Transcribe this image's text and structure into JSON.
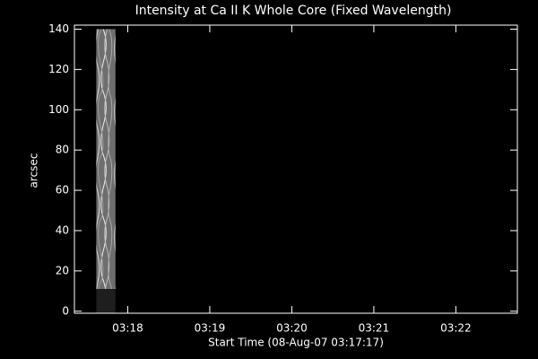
{
  "chart_data": {
    "type": "heatmap",
    "title": "Intensity at Ca II K Whole Core (Fixed Wavelength)",
    "xlabel": "Start Time (08-Aug-07 03:17:17)",
    "ylabel": "arcsec",
    "xlim": [
      11841,
      12165
    ],
    "ylim": [
      -1,
      142
    ],
    "xticks": [
      {
        "value": 11880,
        "label": "03:18"
      },
      {
        "value": 11940,
        "label": "03:19"
      },
      {
        "value": 12000,
        "label": "03:20"
      },
      {
        "value": 12060,
        "label": "03:21"
      },
      {
        "value": 12120,
        "label": "03:22"
      }
    ],
    "yticks": [
      0,
      20,
      40,
      60,
      80,
      100,
      120,
      140
    ],
    "image": {
      "xlim": [
        11857,
        11871
      ],
      "ylim": [
        -1,
        140
      ],
      "dim_below": 11
    }
  }
}
